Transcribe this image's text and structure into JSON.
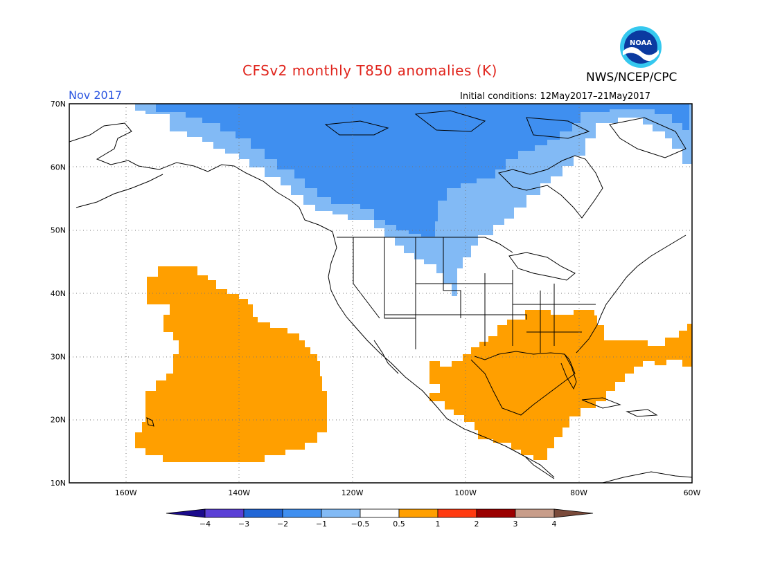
{
  "header": {
    "title": "CFSv2 monthly T850 anomalies (K)",
    "agency": "NWS/NCEP/CPC",
    "logo_text": "NOAA",
    "month": "Nov 2017",
    "initial_conditions": "Initial conditions: 12May2017–21May2017"
  },
  "map": {
    "projection": "lat-lon",
    "lon_range": [
      -170,
      -60
    ],
    "lat_range": [
      10,
      70
    ],
    "lat_labels": [
      "10N",
      "20N",
      "30N",
      "40N",
      "50N",
      "60N",
      "70N"
    ],
    "lon_labels": [
      "160W",
      "140W",
      "120W",
      "100W",
      "80W",
      "60W"
    ],
    "grid_style": "dotted"
  },
  "colorbar": {
    "labels": [
      "−4",
      "−3",
      "−2",
      "−1",
      "−0.5",
      "0.5",
      "1",
      "2",
      "3",
      "4"
    ],
    "colors": [
      "#1a0a8c",
      "#5a3fd6",
      "#2166d6",
      "#3f8ff0",
      "#82baf5",
      "#ffffff",
      "#ff9f00",
      "#ff3a10",
      "#9b0000",
      "#c89d8a",
      "#7a4a3a"
    ]
  },
  "regions": [
    {
      "name": "northern-canada-cold",
      "category": "-2 to -1",
      "color": "#3f8ff0"
    },
    {
      "name": "canada-edge-cool",
      "category": "-1 to -0.5",
      "color": "#82baf5"
    },
    {
      "name": "northeast-pacific-warm",
      "category": "0.5 to 1",
      "color": "#ff9f00"
    },
    {
      "name": "gulf-southeast-us-warm",
      "category": "0.5 to 1",
      "color": "#ff9f00"
    }
  ]
}
